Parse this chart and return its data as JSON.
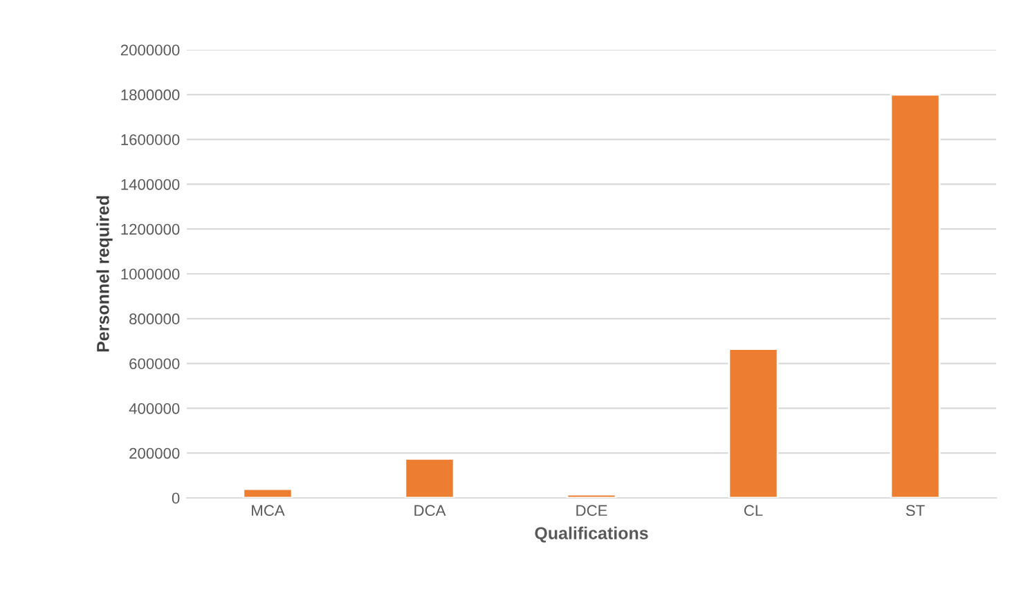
{
  "chart_data": {
    "type": "bar",
    "xlabel": "Qualifications",
    "ylabel": "Personnel required",
    "categories": [
      "MCA",
      "DCA",
      "DCE",
      "CL",
      "ST"
    ],
    "values": [
      40000,
      175000,
      15000,
      665000,
      1800000
    ],
    "color": "#ed7d31",
    "ylim": [
      0,
      2000000
    ],
    "yticks": [
      0,
      200000,
      400000,
      600000,
      800000,
      1000000,
      1200000,
      1400000,
      1600000,
      1800000,
      2000000
    ],
    "grid": "y"
  }
}
